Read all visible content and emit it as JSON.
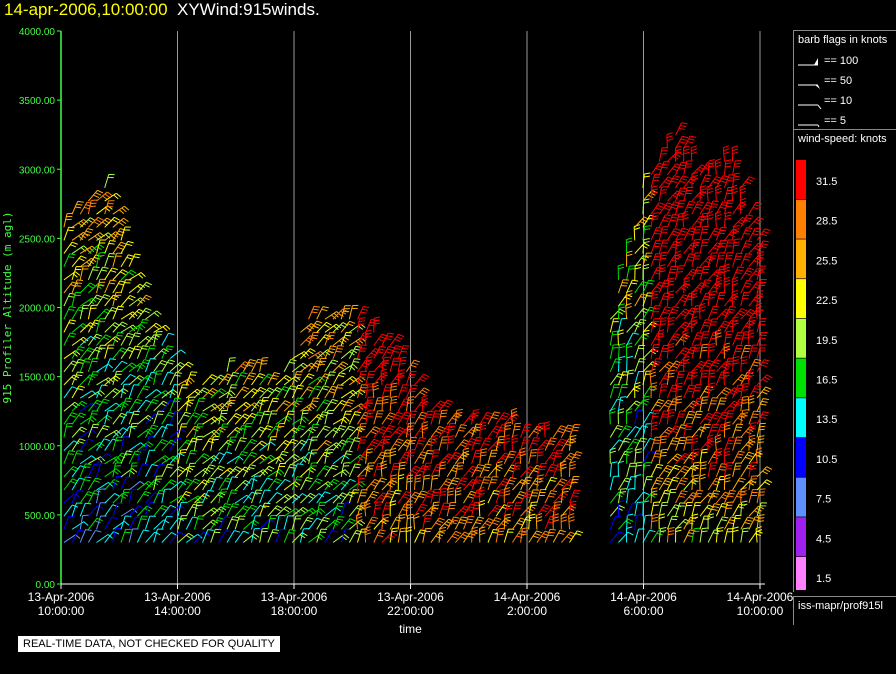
{
  "title": {
    "timestamp": "14-apr-2006,10:00:00",
    "text": "XYWind:915winds."
  },
  "chart_data": {
    "type": "wind-barb time-height",
    "y_axis": {
      "label": "915 Profiler Altitude (m agl)",
      "ticks": [
        "0.00",
        "500.00",
        "1000.00",
        "1500.00",
        "2000.00",
        "2500.00",
        "3000.00",
        "3500.00",
        "4000.00"
      ],
      "ylim": [
        0,
        4000
      ]
    },
    "x_axis": {
      "label": "time",
      "ticks": [
        {
          "line1": "13-Apr-2006",
          "line2": "10:00:00"
        },
        {
          "line1": "13-Apr-2006",
          "line2": "14:00:00"
        },
        {
          "line1": "13-Apr-2006",
          "line2": "18:00:00"
        },
        {
          "line1": "13-Apr-2006",
          "line2": "22:00:00"
        },
        {
          "line1": "14-Apr-2006",
          "line2": "2:00:00"
        },
        {
          "line1": "14-Apr-2006",
          "line2": "6:00:00"
        },
        {
          "line1": "14-Apr-2006",
          "line2": "10:00:00"
        }
      ],
      "range_hours": [
        0,
        24
      ]
    },
    "barb_legend": {
      "title": "barb flags in knots",
      "entries": [
        "== 100",
        "== 50",
        "== 10",
        "== 5"
      ]
    },
    "speed_legend": {
      "title": "wind-speed: knots",
      "bins": [
        {
          "label": "31.5",
          "color": "#ff0000"
        },
        {
          "label": "28.5",
          "color": "#ff8000"
        },
        {
          "label": "25.5",
          "color": "#ffb000"
        },
        {
          "label": "22.5",
          "color": "#ffff00"
        },
        {
          "label": "19.5",
          "color": "#b0ff40"
        },
        {
          "label": "16.5",
          "color": "#00e000"
        },
        {
          "label": "13.5",
          "color": "#00ffff"
        },
        {
          "label": "10.5",
          "color": "#0000ff"
        },
        {
          "label": "7.5",
          "color": "#6090ff"
        },
        {
          "label": "4.5",
          "color": "#a020f0"
        },
        {
          "label": "1.5",
          "color": "#ff80ff"
        }
      ]
    },
    "profile_tops_m": [
      {
        "t": 0.0,
        "top": 2650
      },
      {
        "t": 1.5,
        "top": 2900
      },
      {
        "t": 3.0,
        "top": 1900
      },
      {
        "t": 4.5,
        "top": 1400
      },
      {
        "t": 6.0,
        "top": 1600
      },
      {
        "t": 7.5,
        "top": 1500
      },
      {
        "t": 8.5,
        "top": 2000
      },
      {
        "t": 10.0,
        "top": 2000
      },
      {
        "t": 11.5,
        "top": 1700
      },
      {
        "t": 12.5,
        "top": 1300
      },
      {
        "t": 13.5,
        "top": 1200
      },
      {
        "t": 15.0,
        "top": 1200
      },
      {
        "t": 16.5,
        "top": 1100
      },
      {
        "t": 18.0,
        "top": 1150
      },
      {
        "t": 19.0,
        "top": 2100
      },
      {
        "t": 20.0,
        "top": 2900
      },
      {
        "t": 21.0,
        "top": 3300
      },
      {
        "t": 22.0,
        "top": 3000
      },
      {
        "t": 23.0,
        "top": 3100
      },
      {
        "t": 24.0,
        "top": 2500
      }
    ]
  },
  "source": "iss-mapr/prof915l",
  "qc_note": "REAL-TIME DATA, NOT CHECKED FOR QUALITY"
}
